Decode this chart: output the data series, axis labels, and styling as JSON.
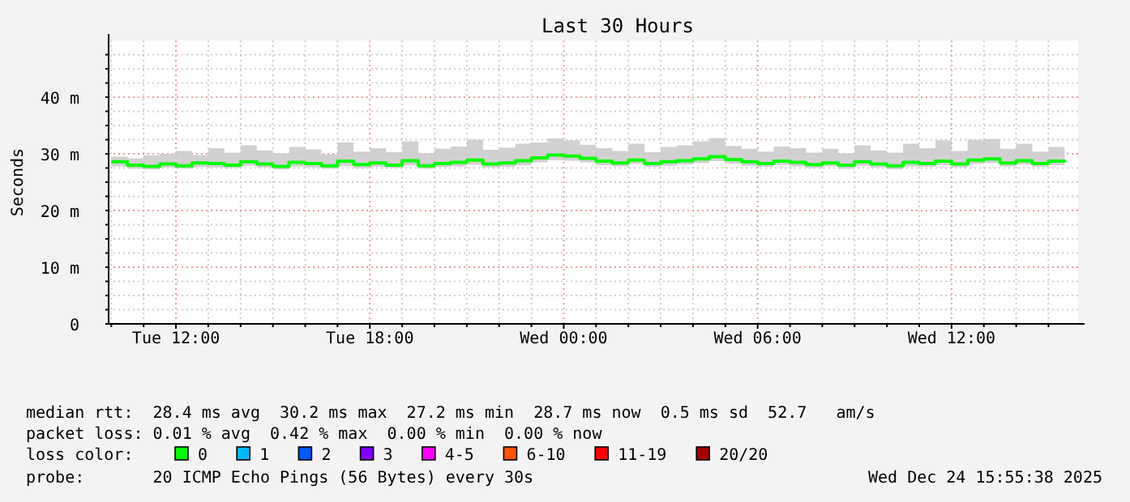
{
  "chart_data": {
    "type": "step",
    "title": "Last 30 Hours",
    "ylabel": "Seconds",
    "legend_title": "loss color:",
    "legend": "bottom",
    "grid": true,
    "xlim": [
      "2025-12-23T09:55",
      "2025-12-24T15:55"
    ],
    "xticks": [
      {
        "value": "2025-12-23T10:00",
        "label": null
      },
      {
        "value": "2025-12-23T11:00",
        "label": null
      },
      {
        "value": "2025-12-23T12:00",
        "label": "Tue 12:00"
      },
      {
        "value": "2025-12-23T13:00",
        "label": null
      },
      {
        "value": "2025-12-23T14:00",
        "label": null
      },
      {
        "value": "2025-12-23T15:00",
        "label": null
      },
      {
        "value": "2025-12-23T16:00",
        "label": null
      },
      {
        "value": "2025-12-23T17:00",
        "label": null
      },
      {
        "value": "2025-12-23T18:00",
        "label": "Tue 18:00"
      },
      {
        "value": "2025-12-23T19:00",
        "label": null
      },
      {
        "value": "2025-12-23T20:00",
        "label": null
      },
      {
        "value": "2025-12-23T21:00",
        "label": null
      },
      {
        "value": "2025-12-23T22:00",
        "label": null
      },
      {
        "value": "2025-12-23T23:00",
        "label": null
      },
      {
        "value": "2025-12-24T00:00",
        "label": "Wed 00:00"
      },
      {
        "value": "2025-12-24T01:00",
        "label": null
      },
      {
        "value": "2025-12-24T02:00",
        "label": null
      },
      {
        "value": "2025-12-24T03:00",
        "label": null
      },
      {
        "value": "2025-12-24T04:00",
        "label": null
      },
      {
        "value": "2025-12-24T05:00",
        "label": null
      },
      {
        "value": "2025-12-24T06:00",
        "label": "Wed 06:00"
      },
      {
        "value": "2025-12-24T07:00",
        "label": null
      },
      {
        "value": "2025-12-24T08:00",
        "label": null
      },
      {
        "value": "2025-12-24T09:00",
        "label": null
      },
      {
        "value": "2025-12-24T10:00",
        "label": null
      },
      {
        "value": "2025-12-24T11:00",
        "label": null
      },
      {
        "value": "2025-12-24T12:00",
        "label": "Wed 12:00"
      },
      {
        "value": "2025-12-24T13:00",
        "label": null
      },
      {
        "value": "2025-12-24T14:00",
        "label": null
      },
      {
        "value": "2025-12-24T15:00",
        "label": null
      }
    ],
    "ylim": [
      0,
      50
    ],
    "yticks": [
      0,
      {
        "value": 2.5,
        "label": null
      },
      {
        "value": 5,
        "label": null
      },
      {
        "value": 7.5,
        "label": null
      },
      {
        "value": 10,
        "label": "10 m"
      },
      {
        "value": 12.5,
        "label": null
      },
      {
        "value": 15,
        "label": null
      },
      {
        "value": 17.5,
        "label": null
      },
      {
        "value": 20,
        "label": "20 m"
      },
      {
        "value": 22.5,
        "label": null
      },
      {
        "value": 25,
        "label": null
      },
      {
        "value": 27.5,
        "label": null
      },
      {
        "value": 30,
        "label": "30 m"
      },
      {
        "value": 32.5,
        "label": null
      },
      {
        "value": 35,
        "label": null
      },
      {
        "value": 37.5,
        "label": null
      },
      {
        "value": 40,
        "label": "40 m"
      },
      {
        "value": 42.5,
        "label": null
      },
      {
        "value": 45,
        "label": null
      },
      {
        "value": 47.5,
        "label": null
      }
    ],
    "x": [
      "2025-12-23T10:00",
      "2025-12-23T10:30",
      "2025-12-23T11:00",
      "2025-12-23T11:30",
      "2025-12-23T12:00",
      "2025-12-23T12:30",
      "2025-12-23T13:00",
      "2025-12-23T13:30",
      "2025-12-23T14:00",
      "2025-12-23T14:30",
      "2025-12-23T15:00",
      "2025-12-23T15:30",
      "2025-12-23T16:00",
      "2025-12-23T16:30",
      "2025-12-23T17:00",
      "2025-12-23T17:30",
      "2025-12-23T18:00",
      "2025-12-23T18:30",
      "2025-12-23T19:00",
      "2025-12-23T19:30",
      "2025-12-23T20:00",
      "2025-12-23T20:30",
      "2025-12-23T21:00",
      "2025-12-23T21:30",
      "2025-12-23T22:00",
      "2025-12-23T22:30",
      "2025-12-23T23:00",
      "2025-12-23T23:30",
      "2025-12-24T00:00",
      "2025-12-24T00:30",
      "2025-12-24T01:00",
      "2025-12-24T01:30",
      "2025-12-24T02:00",
      "2025-12-24T02:30",
      "2025-12-24T03:00",
      "2025-12-24T03:30",
      "2025-12-24T04:00",
      "2025-12-24T04:30",
      "2025-12-24T05:00",
      "2025-12-24T05:30",
      "2025-12-24T06:00",
      "2025-12-24T06:30",
      "2025-12-24T07:00",
      "2025-12-24T07:30",
      "2025-12-24T08:00",
      "2025-12-24T08:30",
      "2025-12-24T09:00",
      "2025-12-24T09:30",
      "2025-12-24T10:00",
      "2025-12-24T10:30",
      "2025-12-24T11:00",
      "2025-12-24T11:30",
      "2025-12-24T12:00",
      "2025-12-24T12:30",
      "2025-12-24T13:00",
      "2025-12-24T13:30",
      "2025-12-24T14:00",
      "2025-12-24T14:30",
      "2025-12-24T15:00",
      "2025-12-24T15:30"
    ],
    "series": [
      {
        "name": "0",
        "color": "#00ff00",
        "values": [
          28.6,
          28,
          27.8,
          28.2,
          27.9,
          28.4,
          28.3,
          28,
          28.6,
          28.2,
          27.8,
          28.5,
          28.3,
          27.9,
          28.7,
          28.1,
          28.4,
          28,
          28.8,
          27.9,
          28.3,
          28.5,
          28.9,
          28.2,
          28.4,
          28.8,
          29.3,
          29.8,
          29.6,
          29.2,
          28.7,
          28.4,
          28.9,
          28.3,
          28.6,
          28.8,
          29.1,
          29.5,
          29,
          28.6,
          28.3,
          28.7,
          28.5,
          28.1,
          28.4,
          28,
          28.6,
          28.2,
          27.9,
          28.5,
          28.3,
          28.7,
          28.2,
          28.9,
          29.1,
          28.4,
          28.8,
          28.3,
          28.7,
          28.5
        ],
        "lower": [
          27.8,
          27.4,
          27.3,
          27.6,
          27.4,
          27.7,
          27.6,
          27.5,
          27.9,
          27.6,
          27.3,
          27.8,
          27.6,
          27.4,
          27.9,
          27.5,
          27.7,
          27.5,
          28,
          27.4,
          27.7,
          27.8,
          28.1,
          27.6,
          27.7,
          28,
          28.5,
          28.9,
          28.8,
          28.5,
          28,
          27.8,
          28.2,
          27.7,
          27.9,
          28.1,
          28.4,
          28.7,
          28.3,
          27.9,
          27.7,
          28,
          27.8,
          27.5,
          27.8,
          27.4,
          27.9,
          27.6,
          27.3,
          27.8,
          27.7,
          28,
          27.6,
          28.2,
          28.4,
          27.8,
          28.1,
          27.7,
          28,
          27.8
        ],
        "upper": [
          29.5,
          29.2,
          29.7,
          30,
          30.5,
          29.8,
          31,
          30.2,
          31.5,
          30.6,
          30.1,
          31.2,
          30.8,
          29.9,
          32,
          30.4,
          31,
          30.3,
          32.2,
          30.1,
          30.9,
          31.3,
          32.5,
          30.7,
          31.1,
          31.8,
          32,
          32.7,
          32.4,
          31.6,
          31,
          30.5,
          31.8,
          30.3,
          31.2,
          31.5,
          32.2,
          32.8,
          31.4,
          30.9,
          30.4,
          31.3,
          31,
          30.2,
          30.9,
          30.1,
          31.5,
          30.6,
          30.2,
          31.8,
          31,
          32.4,
          30.5,
          32.5,
          32.6,
          30.9,
          31.8,
          30.4,
          31.2,
          30.6
        ]
      },
      {
        "name": "1",
        "color": "#00b8ff",
        "values": [
          null,
          null,
          null,
          null,
          null,
          null,
          null,
          null,
          null,
          null,
          null,
          null,
          null,
          null,
          null,
          null,
          null,
          null,
          null,
          null,
          null,
          null,
          null,
          null,
          null,
          null,
          null,
          null,
          null,
          null,
          null,
          null,
          null,
          null,
          null,
          null,
          null,
          null,
          null,
          null,
          null,
          null,
          null,
          null,
          null,
          null,
          null,
          null,
          null,
          null,
          null,
          null,
          null,
          null,
          null,
          null,
          null,
          null,
          null,
          null
        ]
      },
      {
        "name": "2",
        "color": "#0059ff",
        "values": [
          null,
          null,
          null,
          null,
          null,
          null,
          null,
          null,
          null,
          null,
          null,
          null,
          null,
          null,
          null,
          null,
          null,
          null,
          null,
          null,
          null,
          null,
          null,
          null,
          null,
          null,
          null,
          null,
          null,
          null,
          null,
          null,
          null,
          null,
          null,
          null,
          null,
          null,
          null,
          null,
          null,
          null,
          null,
          null,
          null,
          null,
          null,
          null,
          null,
          null,
          null,
          null,
          null,
          null,
          null,
          null,
          null,
          null,
          null,
          null
        ]
      },
      {
        "name": "3",
        "color": "#7e00ff",
        "values": [
          null,
          null,
          null,
          null,
          null,
          null,
          null,
          null,
          null,
          null,
          null,
          null,
          null,
          null,
          null,
          null,
          null,
          null,
          null,
          null,
          null,
          null,
          null,
          null,
          null,
          null,
          null,
          null,
          null,
          null,
          null,
          null,
          null,
          null,
          null,
          null,
          null,
          null,
          null,
          null,
          null,
          null,
          null,
          null,
          null,
          null,
          null,
          null,
          null,
          null,
          null,
          null,
          null,
          null,
          null,
          null,
          null,
          null,
          null,
          null
        ]
      },
      {
        "name": "4-5",
        "color": "#ff00ff",
        "values": [
          null,
          null,
          null,
          null,
          null,
          null,
          null,
          null,
          null,
          null,
          null,
          null,
          null,
          null,
          null,
          null,
          null,
          null,
          null,
          null,
          null,
          null,
          null,
          null,
          null,
          null,
          null,
          null,
          null,
          null,
          null,
          null,
          null,
          null,
          null,
          null,
          null,
          null,
          null,
          null,
          null,
          null,
          null,
          null,
          null,
          null,
          null,
          null,
          null,
          null,
          null,
          null,
          null,
          null,
          null,
          null,
          null,
          null,
          null,
          null
        ]
      },
      {
        "name": "6-10",
        "color": "#ff5500",
        "values": [
          null,
          null,
          null,
          null,
          null,
          null,
          null,
          null,
          null,
          null,
          null,
          null,
          null,
          null,
          null,
          null,
          null,
          null,
          null,
          null,
          null,
          null,
          null,
          null,
          null,
          null,
          null,
          null,
          null,
          null,
          null,
          null,
          null,
          null,
          null,
          null,
          null,
          null,
          null,
          null,
          null,
          null,
          null,
          null,
          null,
          null,
          null,
          null,
          null,
          null,
          null,
          null,
          null,
          null,
          null,
          null,
          null,
          null,
          null,
          null
        ]
      },
      {
        "name": "11-19",
        "color": "#ff0000",
        "values": [
          null,
          null,
          null,
          null,
          null,
          null,
          null,
          null,
          null,
          null,
          null,
          null,
          null,
          null,
          null,
          null,
          null,
          null,
          null,
          null,
          null,
          null,
          null,
          null,
          null,
          null,
          null,
          null,
          null,
          null,
          null,
          null,
          null,
          null,
          null,
          null,
          null,
          null,
          null,
          null,
          null,
          null,
          null,
          null,
          null,
          null,
          null,
          null,
          null,
          null,
          null,
          null,
          null,
          null,
          null,
          null,
          null,
          null,
          null,
          null
        ]
      },
      {
        "name": "20/20",
        "color": "#a10000",
        "values": [
          null,
          null,
          null,
          null,
          null,
          null,
          null,
          null,
          null,
          null,
          null,
          null,
          null,
          null,
          null,
          null,
          null,
          null,
          null,
          null,
          null,
          null,
          null,
          null,
          null,
          null,
          null,
          null,
          null,
          null,
          null,
          null,
          null,
          null,
          null,
          null,
          null,
          null,
          null,
          null,
          null,
          null,
          null,
          null,
          null,
          null,
          null,
          null,
          null,
          null,
          null,
          null,
          null,
          null,
          null,
          null,
          null,
          null,
          null,
          null
        ]
      }
    ],
    "annotations": [
      "median rtt:  28.4 ms avg  30.2 ms max  27.2 ms min  28.7 ms now  0.5 ms sd  52.7   am/s",
      "packet loss: 0.01 % avg  0.42 % max  0.00 % min  0.00 % now",
      "probe:       20 ICMP Echo Pings (56 Bytes) every 30s",
      "Wed Dec 24 15:55:38 2025"
    ]
  }
}
